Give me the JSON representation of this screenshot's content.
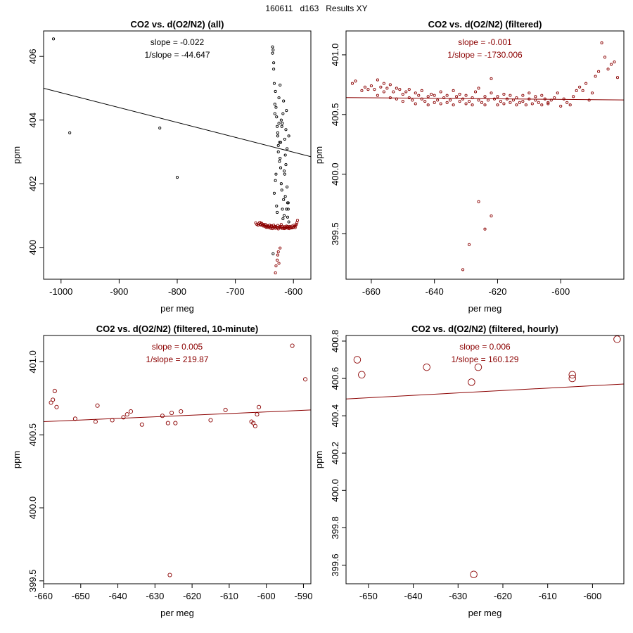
{
  "page_title": "160611   d163   Results XY",
  "colors": {
    "black": "#000000",
    "red": "#8b0000"
  },
  "chart_data": [
    {
      "type": "scatter",
      "title": "CO2 vs. d(O2/N2) (all)",
      "xlabel": "per meg",
      "ylabel": "ppm",
      "xlim": [
        -1030,
        -570
      ],
      "ylim": [
        399.0,
        406.8
      ],
      "xticks": [
        -1000,
        -900,
        -800,
        -700,
        -600
      ],
      "yticks": [
        400,
        402,
        404,
        406
      ],
      "annotations": [
        "slope = -0.022",
        "1/slope = -44.647"
      ],
      "fit_line": {
        "x": [
          -1030,
          -570
        ],
        "y": [
          405.0,
          402.85
        ],
        "color": "#000000"
      },
      "marker_size": "small",
      "series": [
        {
          "color": "#000000",
          "x": [
            -1013,
            -985,
            -830,
            -800,
            -636,
            -635,
            -634,
            -633,
            -632,
            -631,
            -630,
            -629,
            -628,
            -627,
            -626,
            -625,
            -624,
            -623,
            -622,
            -621,
            -620,
            -619,
            -618,
            -617,
            -616,
            -615,
            -614,
            -613,
            -612,
            -611,
            -610,
            -609,
            -608,
            -635,
            -633,
            -631,
            -629,
            -627,
            -625,
            -623,
            -621,
            -619,
            -617,
            -615,
            -613,
            -611,
            -609,
            -636,
            -634,
            -632,
            -630,
            -628,
            -626,
            -624,
            -622,
            -620,
            -618,
            -616,
            -614,
            -612,
            -610,
            -608
          ],
          "y": [
            406.55,
            403.6,
            403.75,
            402.2,
            406.3,
            406.2,
            405.8,
            405.15,
            404.5,
            404.9,
            404.4,
            404.1,
            403.8,
            403.5,
            403.2,
            403.9,
            403.3,
            402.8,
            402.5,
            402.0,
            401.8,
            401.2,
            400.9,
            401.5,
            401.0,
            402.3,
            402.9,
            403.7,
            404.3,
            403.1,
            401.4,
            401.2,
            403.5,
            399.8,
            401.7,
            402.1,
            401.3,
            403.6,
            404.7,
            405.1,
            404.0,
            403.9,
            404.6,
            403.4,
            402.6,
            401.9,
            401.4,
            406.1,
            405.6,
            404.2,
            402.3,
            401.1,
            403.0,
            402.7,
            403.3,
            403.8,
            404.2,
            402.4,
            401.6,
            401.2,
            400.95,
            400.8
          ]
        },
        {
          "color": "#8b0000",
          "x": [
            -665,
            -663,
            -661,
            -660,
            -658,
            -657,
            -656,
            -655,
            -654,
            -653,
            -652,
            -651,
            -650,
            -649,
            -648,
            -647,
            -646,
            -645,
            -644,
            -643,
            -642,
            -641,
            -640,
            -639,
            -638,
            -637,
            -636,
            -635,
            -634,
            -633,
            -632,
            -631,
            -630,
            -629,
            -628,
            -627,
            -626,
            -625,
            -624,
            -623,
            -622,
            -621,
            -620,
            -619,
            -618,
            -617,
            -616,
            -615,
            -614,
            -613,
            -612,
            -611,
            -610,
            -609,
            -608,
            -607,
            -606,
            -605,
            -604,
            -603,
            -602,
            -601,
            -600,
            -599,
            -598,
            -597,
            -596,
            -595,
            -594,
            -593,
            -631,
            -630,
            -628,
            -627,
            -626,
            -625,
            -623
          ],
          "y": [
            400.77,
            400.72,
            400.7,
            400.74,
            400.79,
            400.72,
            400.7,
            400.76,
            400.74,
            400.7,
            400.67,
            400.72,
            400.69,
            400.66,
            400.72,
            400.63,
            400.67,
            400.63,
            400.68,
            400.66,
            400.62,
            400.7,
            400.64,
            400.6,
            400.68,
            400.66,
            400.59,
            400.62,
            400.7,
            400.64,
            400.66,
            400.6,
            400.65,
            400.62,
            400.63,
            400.69,
            400.58,
            400.62,
            400.64,
            400.66,
            400.62,
            400.72,
            400.6,
            400.66,
            400.6,
            400.63,
            400.59,
            400.65,
            400.6,
            400.62,
            400.67,
            400.61,
            400.66,
            400.6,
            400.63,
            400.59,
            400.66,
            400.63,
            400.62,
            400.61,
            400.67,
            400.62,
            400.64,
            400.7,
            400.66,
            400.62,
            400.69,
            400.72,
            400.78,
            400.85,
            399.2,
            399.42,
            399.6,
            399.76,
            399.86,
            399.5,
            399.98
          ]
        }
      ]
    },
    {
      "type": "scatter",
      "title": "CO2 vs. d(O2/N2) (filtered)",
      "xlabel": "per meg",
      "ylabel": "ppm",
      "xlim": [
        -668,
        -580
      ],
      "ylim": [
        399.12,
        401.2
      ],
      "xticks": [
        -660,
        -640,
        -620,
        -600
      ],
      "yticks": [
        399.5,
        400.0,
        400.5,
        401.0
      ],
      "annotations": [
        "slope = -0.001",
        "1/slope = -1730.006"
      ],
      "fit_line": {
        "x": [
          -668,
          -580
        ],
        "y": [
          400.642,
          400.622
        ],
        "color": "#8b0000"
      },
      "marker_size": "small",
      "series": [
        {
          "color": "#8b0000",
          "x": [
            -666,
            -665,
            -663,
            -662,
            -661,
            -660,
            -659,
            -658,
            -658,
            -657,
            -656,
            -656,
            -655,
            -654,
            -654,
            -653,
            -652,
            -652,
            -651,
            -650,
            -650,
            -649,
            -648,
            -648,
            -647,
            -646,
            -646,
            -645,
            -644,
            -644,
            -643,
            -642,
            -642,
            -641,
            -640,
            -640,
            -639,
            -638,
            -638,
            -637,
            -636,
            -636,
            -635,
            -634,
            -634,
            -633,
            -632,
            -632,
            -631,
            -630,
            -630,
            -629,
            -628,
            -628,
            -627,
            -626,
            -626,
            -625,
            -624,
            -624,
            -623,
            -622,
            -622,
            -621,
            -620,
            -620,
            -619,
            -618,
            -618,
            -617,
            -616,
            -616,
            -615,
            -614,
            -614,
            -613,
            -612,
            -612,
            -611,
            -610,
            -610,
            -609,
            -608,
            -608,
            -607,
            -606,
            -606,
            -605,
            -604,
            -604,
            -603,
            -602,
            -601,
            -600,
            -599,
            -598,
            -597,
            -596,
            -595,
            -594,
            -593,
            -592,
            -591,
            -590,
            -589,
            -588,
            -587,
            -586,
            -585,
            -584,
            -583,
            -582
          ],
          "y": [
            400.76,
            400.78,
            400.7,
            400.73,
            400.71,
            400.74,
            400.71,
            400.79,
            400.66,
            400.73,
            400.69,
            400.76,
            400.72,
            400.64,
            400.75,
            400.69,
            400.72,
            400.63,
            400.71,
            400.67,
            400.61,
            400.69,
            400.64,
            400.71,
            400.62,
            400.68,
            400.59,
            400.66,
            400.63,
            400.7,
            400.61,
            400.65,
            400.58,
            400.67,
            400.6,
            400.66,
            400.62,
            400.69,
            400.59,
            400.64,
            400.6,
            400.66,
            400.62,
            400.7,
            400.58,
            400.65,
            400.61,
            400.67,
            400.63,
            400.59,
            400.66,
            400.61,
            400.64,
            400.58,
            400.69,
            400.62,
            400.72,
            400.6,
            400.65,
            400.58,
            400.62,
            400.68,
            400.8,
            400.63,
            400.58,
            400.65,
            400.61,
            400.67,
            400.59,
            400.63,
            400.6,
            400.66,
            400.62,
            400.58,
            400.64,
            400.6,
            400.66,
            400.61,
            400.58,
            400.63,
            400.68,
            400.59,
            400.62,
            400.65,
            400.6,
            400.66,
            400.58,
            400.63,
            400.59,
            400.6,
            400.62,
            400.64,
            400.68,
            400.57,
            400.63,
            400.6,
            400.58,
            400.65,
            400.7,
            400.73,
            400.7,
            400.76,
            400.62,
            400.68,
            400.82,
            400.86,
            401.1,
            400.98,
            400.88,
            400.92,
            400.94,
            400.81
          ]
        },
        {
          "color": "#8b0000",
          "x": [
            -631,
            -629,
            -626,
            -624,
            -622
          ],
          "y": [
            399.2,
            399.41,
            399.77,
            399.54,
            399.65
          ]
        }
      ]
    },
    {
      "type": "scatter",
      "title": "CO2 vs. d(O2/N2) (filtered, 10-minute)",
      "xlabel": "per meg",
      "ylabel": "ppm",
      "xlim": [
        -660,
        -588
      ],
      "ylim": [
        399.48,
        401.18
      ],
      "xticks": [
        -660,
        -650,
        -640,
        -630,
        -620,
        -610,
        -600,
        -590
      ],
      "yticks": [
        399.5,
        400.0,
        400.5,
        401.0
      ],
      "annotations": [
        "slope = 0.005",
        "1/slope = 219.87"
      ],
      "fit_line": {
        "x": [
          -660,
          -588
        ],
        "y": [
          400.59,
          400.67
        ],
        "color": "#8b0000"
      },
      "marker_size": "medium",
      "series": [
        {
          "color": "#8b0000",
          "x": [
            -658,
            -657.5,
            -657,
            -656.5,
            -651.5,
            -646,
            -645.5,
            -641.5,
            -638.5,
            -637.5,
            -636.5,
            -633.5,
            -628,
            -626.5,
            -625.5,
            -624.5,
            -623,
            -615,
            -611,
            -604,
            -603.5,
            -603,
            -602.5,
            -602,
            -593,
            -589.5
          ],
          "y": [
            400.72,
            400.74,
            400.8,
            400.69,
            400.61,
            400.59,
            400.7,
            400.6,
            400.62,
            400.64,
            400.66,
            400.57,
            400.63,
            400.58,
            400.65,
            400.58,
            400.66,
            400.6,
            400.67,
            400.59,
            400.58,
            400.56,
            400.64,
            400.69,
            401.11,
            400.88
          ]
        },
        {
          "color": "#8b0000",
          "x": [
            -626
          ],
          "y": [
            399.54
          ]
        }
      ]
    },
    {
      "type": "scatter",
      "title": "CO2 vs. d(O2/N2) (filtered, hourly)",
      "xlabel": "per meg",
      "ylabel": "ppm",
      "xlim": [
        -655,
        -593
      ],
      "ylim": [
        399.5,
        400.83
      ],
      "xticks": [
        -650,
        -640,
        -630,
        -620,
        -610,
        -600
      ],
      "yticks": [
        399.6,
        399.8,
        400.0,
        400.2,
        400.4,
        400.6,
        400.8
      ],
      "annotations": [
        "slope = 0.006",
        "1/slope = 160.129"
      ],
      "fit_line": {
        "x": [
          -655,
          -593
        ],
        "y": [
          400.49,
          400.57
        ],
        "color": "#8b0000"
      },
      "marker_size": "large",
      "series": [
        {
          "color": "#8b0000",
          "x": [
            -652.5,
            -651.5,
            -637,
            -627,
            -625.5,
            -604.5,
            -604.5,
            -594.5
          ],
          "y": [
            400.7,
            400.62,
            400.66,
            400.58,
            400.66,
            400.62,
            400.6,
            400.81
          ]
        },
        {
          "color": "#8b0000",
          "x": [
            -626.5
          ],
          "y": [
            399.55
          ]
        }
      ]
    }
  ]
}
